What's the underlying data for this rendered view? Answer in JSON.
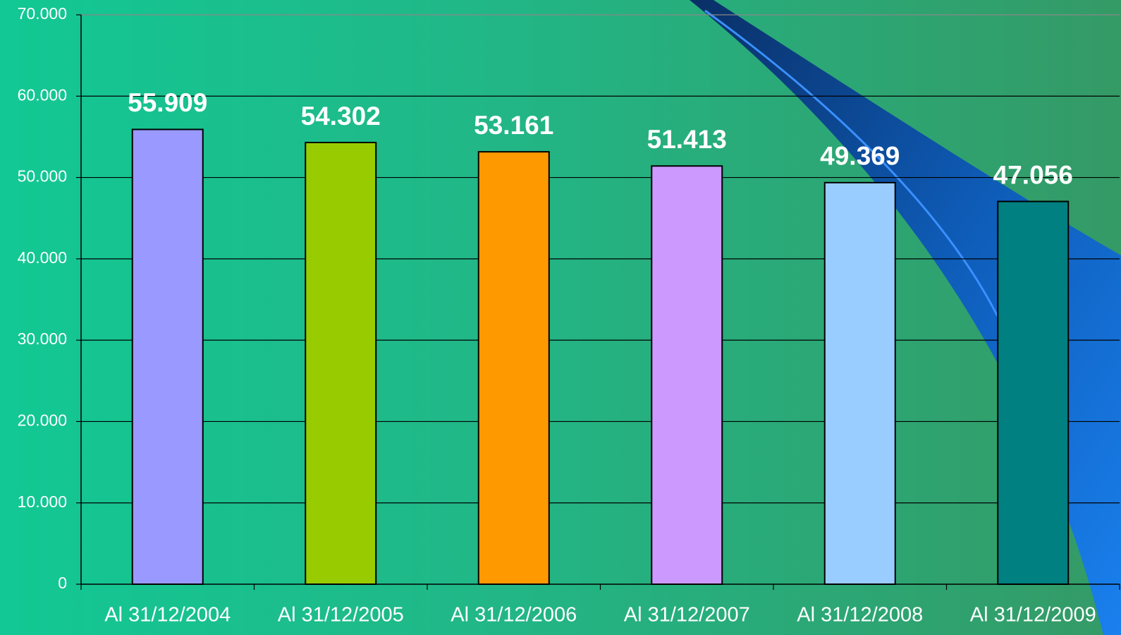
{
  "chart_data": {
    "type": "bar",
    "categories": [
      "Al 31/12/2004",
      "Al 31/12/2005",
      "Al 31/12/2006",
      "Al 31/12/2007",
      "Al 31/12/2008",
      "Al 31/12/2009"
    ],
    "values": [
      55909,
      54302,
      53161,
      51413,
      49369,
      47056
    ],
    "value_labels": [
      "55.909",
      "54.302",
      "53.161",
      "51.413",
      "49.369",
      "47.056"
    ],
    "colors": [
      "#9999ff",
      "#99cc00",
      "#ff9900",
      "#cc99ff",
      "#99ccff",
      "#008080"
    ],
    "ylim": [
      0,
      70000
    ],
    "yticks": [
      0,
      {
        "value": 10000,
        "label": "10.000"
      },
      {
        "value": 20000,
        "label": "20.000"
      },
      {
        "value": 30000,
        "label": "30.000"
      },
      {
        "value": 40000,
        "label": "40.000"
      },
      {
        "value": 50000,
        "label": "50.000"
      },
      {
        "value": 60000,
        "label": "60.000"
      },
      {
        "value": 70000,
        "label": "70.000"
      }
    ],
    "grid": true
  }
}
